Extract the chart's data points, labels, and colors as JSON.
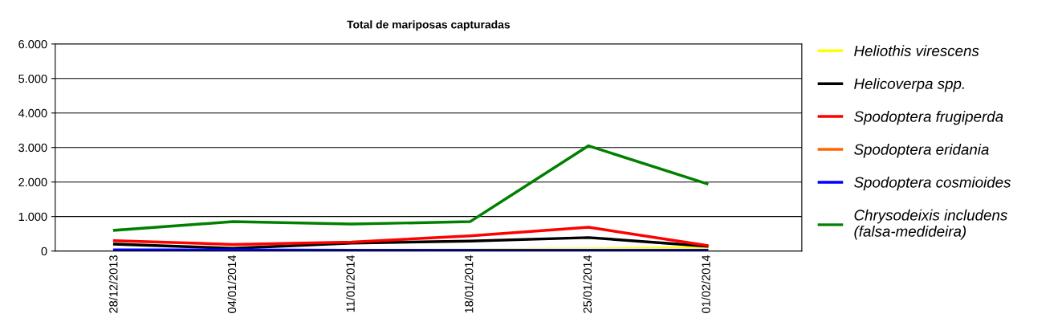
{
  "chart_data": {
    "type": "line",
    "title": "Total de mariposas capturadas",
    "categories": [
      "28/12/2013",
      "04/01/2014",
      "11/01/2014",
      "18/01/2014",
      "25/01/2014",
      "01/02/2014"
    ],
    "series": [
      {
        "name": "Heliothis virescens",
        "color": "#ffff00",
        "values": [
          10,
          20,
          30,
          40,
          60,
          100
        ]
      },
      {
        "name": "Helicoverpa spp.",
        "color": "#000000",
        "values": [
          200,
          80,
          230,
          290,
          390,
          140
        ]
      },
      {
        "name": "Spodoptera frugiperda",
        "color": "#ff0000",
        "values": [
          300,
          190,
          260,
          440,
          690,
          160
        ]
      },
      {
        "name": "Spodoptera eridania",
        "color": "#ff6600",
        "values": [
          null,
          null,
          null,
          null,
          null,
          null
        ]
      },
      {
        "name": "Spodoptera cosmioides",
        "color": "#0000ff",
        "values": [
          30,
          30,
          20,
          20,
          20,
          20
        ]
      },
      {
        "name": "Chrysodeixis includens\n(falsa-medideira)",
        "color": "#008000",
        "values": [
          600,
          850,
          780,
          850,
          3050,
          1950
        ]
      }
    ],
    "ylim": [
      0,
      6000
    ],
    "yticks": [
      {
        "value": 0,
        "label": "0"
      },
      {
        "value": 1000,
        "label": "1.000"
      },
      {
        "value": 2000,
        "label": "2.000"
      },
      {
        "value": 3000,
        "label": "3.000"
      },
      {
        "value": 4000,
        "label": "4.000"
      },
      {
        "value": 5000,
        "label": "5.000"
      },
      {
        "value": 6000,
        "label": "6.000"
      }
    ],
    "grid": "y",
    "legend": "right",
    "marker": "none",
    "line_style": "solid"
  }
}
